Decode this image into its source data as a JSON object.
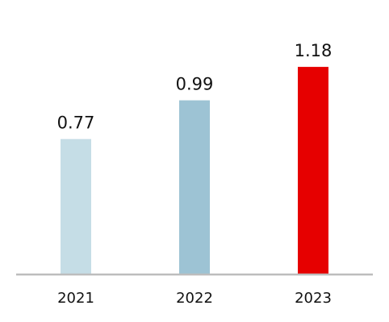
{
  "chart_data": {
    "type": "bar",
    "categories": [
      "2021",
      "2022",
      "2023"
    ],
    "values": [
      0.77,
      0.99,
      1.18
    ],
    "value_labels": [
      "0.77",
      "0.99",
      "1.18"
    ],
    "bar_colors": [
      "#c5dde6",
      "#9dc3d4",
      "#e60000"
    ],
    "axis_color": "#bdbdbd",
    "ylim": [
      0,
      1.4
    ],
    "grid": false,
    "title": "",
    "xlabel": "",
    "ylabel": ""
  }
}
